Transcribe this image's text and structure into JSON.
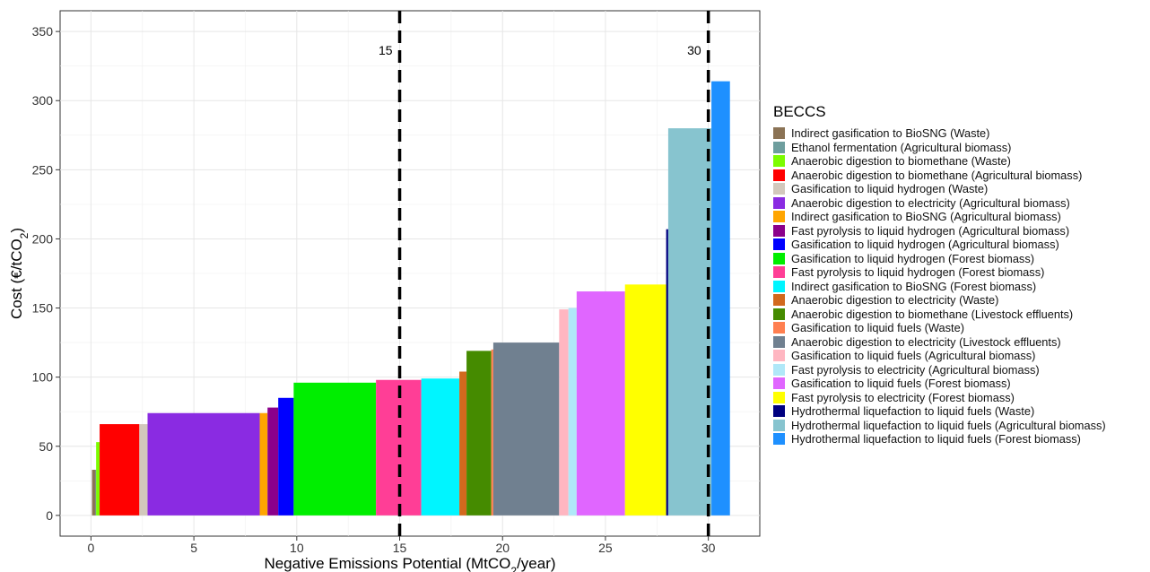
{
  "chart_data": {
    "type": "bar",
    "variant": "marginal-abatement-cost-curve",
    "xlabel": "Negative Emissions Potential (MtCO₂/year)",
    "ylabel": "Cost (€/tCO₂)",
    "xlim": [
      -1.5,
      32.5
    ],
    "ylim": [
      -15,
      365
    ],
    "xticks": [
      0,
      5,
      10,
      15,
      20,
      25,
      30
    ],
    "yticks": [
      0,
      50,
      100,
      150,
      200,
      250,
      300,
      350
    ],
    "grid": true,
    "reference_lines": [
      {
        "x": 15,
        "label": "15",
        "style": "dashed"
      },
      {
        "x": 30,
        "label": "30",
        "style": "dashed"
      }
    ],
    "legend_title": "BECCS",
    "legend_position": "right",
    "series": [
      {
        "name": "Indirect gasification to BioSNG (Waste)",
        "color": "#8B7355"
      },
      {
        "name": "Ethanol fermentation (Agricultural biomass)",
        "color": "#6E9E9E"
      },
      {
        "name": "Anaerobic digestion to biomethane (Waste)",
        "color": "#7CFC00"
      },
      {
        "name": "Anaerobic digestion to biomethane (Agricultural biomass)",
        "color": "#FF0000"
      },
      {
        "name": "Gasification to liquid hydrogen (Waste)",
        "color": "#D2C8BC"
      },
      {
        "name": "Anaerobic digestion to electricity (Agricultural biomass)",
        "color": "#8A2BE2"
      },
      {
        "name": "Indirect gasification to BioSNG (Agricultural biomass)",
        "color": "#FFA500"
      },
      {
        "name": "Fast pyrolysis to liquid hydrogen (Agricultural biomass)",
        "color": "#8B008B"
      },
      {
        "name": "Gasification to liquid hydrogen (Agricultural biomass)",
        "color": "#0000FF"
      },
      {
        "name": "Gasification to liquid hydrogen (Forest biomass)",
        "color": "#00EE00"
      },
      {
        "name": "Fast pyrolysis to liquid hydrogen (Forest biomass)",
        "color": "#FF3E96"
      },
      {
        "name": "Indirect gasification to BioSNG (Forest biomass)",
        "color": "#00F5FF"
      },
      {
        "name": "Anaerobic digestion to electricity (Waste)",
        "color": "#D2691E"
      },
      {
        "name": "Anaerobic digestion to biomethane (Livestock effluents)",
        "color": "#458B00"
      },
      {
        "name": "Gasification to liquid fuels (Waste)",
        "color": "#FF7F50"
      },
      {
        "name": "Anaerobic digestion to electricity (Livestock effluents)",
        "color": "#708090"
      },
      {
        "name": "Gasification to liquid fuels (Agricultural biomass)",
        "color": "#FFB6C1"
      },
      {
        "name": "Fast pyrolysis to electricity (Agricultural biomass)",
        "color": "#B0E8F8"
      },
      {
        "name": "Gasification to liquid fuels (Forest biomass)",
        "color": "#E066FF"
      },
      {
        "name": "Fast pyrolysis to electricity (Forest biomass)",
        "color": "#FFFF00"
      },
      {
        "name": "Hydrothermal liquefaction to liquid fuels (Waste)",
        "color": "#000080"
      },
      {
        "name": "Hydrothermal liquefaction to liquid fuels (Agricultural biomass)",
        "color": "#87C4CF"
      },
      {
        "name": "Hydrothermal liquefaction to liquid fuels (Forest biomass)",
        "color": "#1E90FF"
      }
    ],
    "bars": [
      {
        "series": 0,
        "x0": 0.05,
        "x1": 0.22,
        "y": 33
      },
      {
        "series": 1,
        "x0": 0.22,
        "x1": 0.25,
        "y": 33
      },
      {
        "series": 2,
        "x0": 0.25,
        "x1": 0.42,
        "y": 53
      },
      {
        "series": 3,
        "x0": 0.42,
        "x1": 2.35,
        "y": 66
      },
      {
        "series": 4,
        "x0": 2.35,
        "x1": 2.75,
        "y": 66
      },
      {
        "series": 5,
        "x0": 2.75,
        "x1": 8.2,
        "y": 74
      },
      {
        "series": 6,
        "x0": 8.2,
        "x1": 8.58,
        "y": 74
      },
      {
        "series": 7,
        "x0": 8.58,
        "x1": 9.1,
        "y": 78
      },
      {
        "series": 8,
        "x0": 9.1,
        "x1": 9.85,
        "y": 85
      },
      {
        "series": 9,
        "x0": 9.85,
        "x1": 13.85,
        "y": 96
      },
      {
        "series": 10,
        "x0": 13.85,
        "x1": 16.05,
        "y": 98
      },
      {
        "series": 11,
        "x0": 16.05,
        "x1": 17.9,
        "y": 99
      },
      {
        "series": 12,
        "x0": 17.9,
        "x1": 18.25,
        "y": 104
      },
      {
        "series": 13,
        "x0": 18.25,
        "x1": 19.45,
        "y": 119
      },
      {
        "series": 14,
        "x0": 19.45,
        "x1": 19.55,
        "y": 120
      },
      {
        "series": 15,
        "x0": 19.55,
        "x1": 22.75,
        "y": 125
      },
      {
        "series": 16,
        "x0": 22.75,
        "x1": 23.2,
        "y": 149
      },
      {
        "series": 17,
        "x0": 23.2,
        "x1": 23.6,
        "y": 150
      },
      {
        "series": 18,
        "x0": 23.6,
        "x1": 25.95,
        "y": 162
      },
      {
        "series": 19,
        "x0": 25.95,
        "x1": 27.95,
        "y": 167
      },
      {
        "series": 20,
        "x0": 27.95,
        "x1": 28.05,
        "y": 207
      },
      {
        "series": 21,
        "x0": 28.05,
        "x1": 30.15,
        "y": 280
      },
      {
        "series": 22,
        "x0": 30.15,
        "x1": 31.05,
        "y": 314
      }
    ]
  }
}
